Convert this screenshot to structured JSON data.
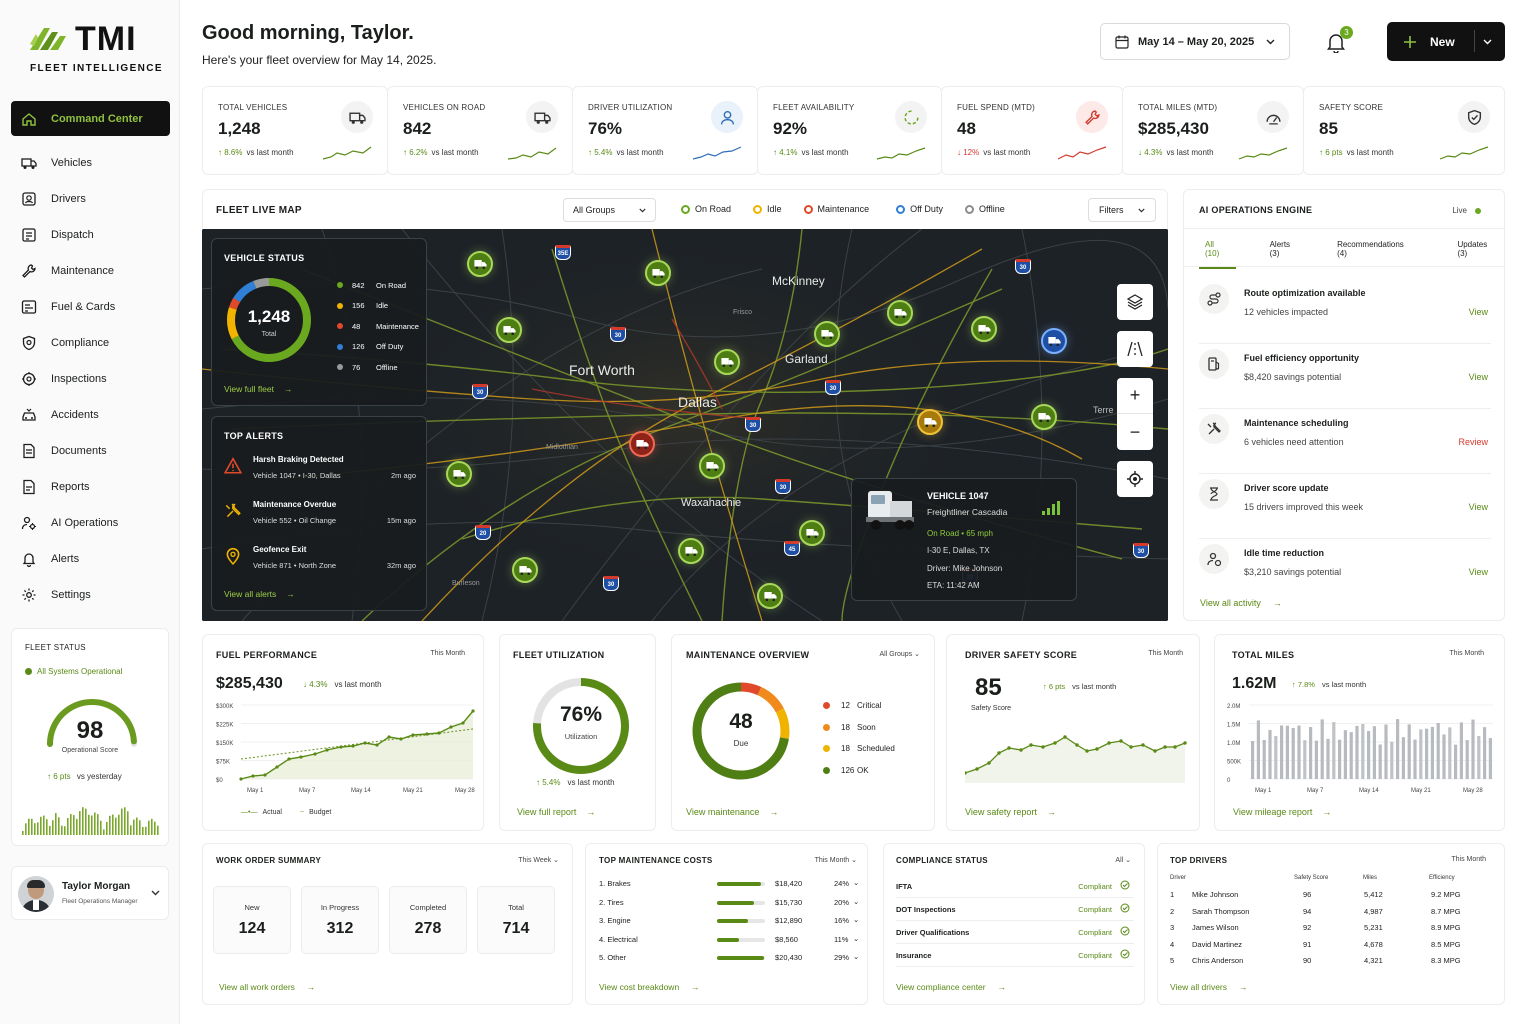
{
  "brand": {
    "name": "TMI",
    "tagline": "FLEET INTELLIGENCE"
  },
  "nav": [
    {
      "label": "Command Center",
      "icon": "home-icon"
    },
    {
      "label": "Vehicles",
      "icon": "truck-icon"
    },
    {
      "label": "Drivers",
      "icon": "driver-icon"
    },
    {
      "label": "Dispatch",
      "icon": "dispatch-icon"
    },
    {
      "label": "Maintenance",
      "icon": "wrench-icon"
    },
    {
      "label": "Fuel & Cards",
      "icon": "card-icon"
    },
    {
      "label": "Compliance",
      "icon": "shield-icon"
    },
    {
      "label": "Inspections",
      "icon": "inspect-icon"
    },
    {
      "label": "Accidents",
      "icon": "accident-icon"
    },
    {
      "label": "Documents",
      "icon": "document-icon"
    },
    {
      "label": "Reports",
      "icon": "report-icon"
    },
    {
      "label": "AI Operations",
      "icon": "ai-icon"
    },
    {
      "label": "Alerts",
      "icon": "bell-icon"
    },
    {
      "label": "Settings",
      "icon": "gear-icon"
    }
  ],
  "fleet_status": {
    "title": "FLEET STATUS",
    "status": "All Systems Operational",
    "score": "98",
    "score_label": "Operational Score",
    "delta": "6 pts",
    "delta_vs": "vs yesterday",
    "score_fraction": 0.98
  },
  "user": {
    "name": "Taylor Morgan",
    "role": "Fleet Operations Manager"
  },
  "header": {
    "greeting": "Good morning, Taylor.",
    "subtitle": "Here's your fleet overview for May 14, 2025.",
    "date_range": "May 14 – May 20, 2025",
    "notifications": "3",
    "new_label": "New"
  },
  "kpis": [
    {
      "title": "TOTAL VEHICLES",
      "value": "1,248",
      "delta": "8.6%",
      "vs": "vs last month",
      "dir": "up",
      "icon": "truck-icon"
    },
    {
      "title": "VEHICLES ON ROAD",
      "value": "842",
      "delta": "6.2%",
      "vs": "vs last month",
      "dir": "up",
      "icon": "truck-road-icon"
    },
    {
      "title": "DRIVER UTILIZATION",
      "value": "76%",
      "delta": "5.4%",
      "vs": "vs last month",
      "dir": "up",
      "icon": "person-icon"
    },
    {
      "title": "FLEET AVAILABILITY",
      "value": "92%",
      "delta": "4.1%",
      "vs": "vs last month",
      "dir": "up",
      "icon": "availability-icon"
    },
    {
      "title": "FUEL SPEND (MTD)",
      "value": "48",
      "delta": "12%",
      "vs": "vs last month",
      "dir": "down",
      "icon": "wrench-icon"
    },
    {
      "title": "TOTAL MILES (MTD)",
      "value": "$285,430",
      "delta": "4.3%",
      "vs": "vs last month",
      "dir": "down",
      "icon": "gauge-icon"
    },
    {
      "title": "SAFETY SCORE",
      "value": "85",
      "delta": "6 pts",
      "vs": "vs last month",
      "dir": "up",
      "icon": "shield-check-icon"
    }
  ],
  "map": {
    "title": "FLEET LIVE MAP",
    "group": "All Groups",
    "filters": "Filters",
    "legend": [
      {
        "label": "On Road",
        "color": "#6aa91f"
      },
      {
        "label": "Idle",
        "color": "#f0b400"
      },
      {
        "label": "Maintenance",
        "color": "#e04a2a"
      },
      {
        "label": "Off Duty",
        "color": "#2f7fd6"
      },
      {
        "label": "Offline",
        "color": "#8c8c8c"
      }
    ],
    "cities": [
      "McKinney",
      "Fort Worth",
      "Garland",
      "Dallas",
      "Waxahachie",
      "Frisco",
      "Terre",
      "Midlothian",
      "Burleson"
    ],
    "vehicle_status": {
      "title": "VEHICLE STATUS",
      "total": "1,248",
      "total_label": "Total",
      "link": "View full fleet",
      "items": [
        {
          "count": "842",
          "label": "On Road",
          "color": "#6aa91f",
          "value": 842
        },
        {
          "count": "156",
          "label": "Idle",
          "color": "#f0b400",
          "value": 156
        },
        {
          "count": "48",
          "label": "Maintenance",
          "color": "#e04a2a",
          "value": 48
        },
        {
          "count": "126",
          "label": "Off Duty",
          "color": "#2f7fd6",
          "value": 126
        },
        {
          "count": "76",
          "label": "Offline",
          "color": "#9a9a9a",
          "value": 76
        }
      ]
    },
    "alerts": {
      "title": "TOP ALERTS",
      "link": "View all alerts",
      "items": [
        {
          "title": "Harsh Braking Detected",
          "sub": "Vehicle 1047 • I-30, Dallas",
          "time": "2m ago",
          "icon": "warning-icon",
          "color": "#e04a2a"
        },
        {
          "title": "Maintenance Overdue",
          "sub": "Vehicle 552 • Oil Change",
          "time": "15m ago",
          "icon": "tools-icon",
          "color": "#f0b400"
        },
        {
          "title": "Geofence Exit",
          "sub": "Vehicle 871 • North Zone",
          "time": "32m ago",
          "icon": "location-icon",
          "color": "#f0b400"
        }
      ]
    },
    "vehicle_popup": {
      "title": "VEHICLE 1047",
      "model": "Freightliner Cascadia",
      "status": "On Road",
      "speed": "65 mph",
      "location": "I-30 E, Dallas, TX",
      "driver": "Driver: Mike Johnson",
      "eta": "ETA: 11:42 AM"
    },
    "highways": [
      "35E",
      "30",
      "30",
      "30",
      "30",
      "30",
      "30",
      "20",
      "30",
      "30",
      "45",
      "20"
    ]
  },
  "ai": {
    "title": "AI OPERATIONS ENGINE",
    "live": "Live",
    "tabs": [
      "All (10)",
      "Alerts (3)",
      "Recommendations (4)",
      "Updates (3)"
    ],
    "items": [
      {
        "title": "Route optimization available",
        "sub": "12 vehicles impacted",
        "action": "View",
        "icon": "route-icon"
      },
      {
        "title": "Fuel efficiency opportunity",
        "sub": "$8,420 savings potential",
        "action": "View",
        "icon": "fuel-icon"
      },
      {
        "title": "Maintenance scheduling",
        "sub": "6 vehicles need attention",
        "action": "Review",
        "icon": "tools-icon"
      },
      {
        "title": "Driver score update",
        "sub": "15 drivers improved this week",
        "action": "View",
        "icon": "score-icon"
      },
      {
        "title": "Idle time reduction",
        "sub": "$3,210 savings potential",
        "action": "View",
        "icon": "idle-icon"
      }
    ],
    "link": "View all activity"
  },
  "fuel_perf": {
    "title": "FUEL PERFORMANCE",
    "period": "This Month",
    "value": "$285,430",
    "delta": "4.3%",
    "vs": "vs last month",
    "legend": [
      "Actual",
      "Budget"
    ],
    "yticks": [
      "$300K",
      "$225K",
      "$150K",
      "$75K",
      "$0"
    ],
    "xticks": [
      "May 1",
      "May 7",
      "May 14",
      "May 21",
      "May 28"
    ]
  },
  "utilization": {
    "title": "FLEET UTILIZATION",
    "value": "76%",
    "label": "Utilization",
    "fraction": 0.76,
    "delta": "5.4%",
    "vs": "vs last month",
    "link": "View full report"
  },
  "maintenance": {
    "title": "MAINTENANCE OVERVIEW",
    "group": "All Groups",
    "value": "48",
    "label": "Due",
    "link": "View maintenance",
    "items": [
      {
        "count": "12",
        "label": "Critical",
        "color": "#e04a2a",
        "value": 12
      },
      {
        "count": "18",
        "label": "Soon",
        "color": "#f08a1c",
        "value": 18
      },
      {
        "count": "18",
        "label": "Scheduled",
        "color": "#f0b400",
        "value": 18
      },
      {
        "count": "126",
        "label": "OK",
        "color": "#4f7f14",
        "value": 126
      }
    ]
  },
  "safety": {
    "title": "DRIVER SAFETY SCORE",
    "period": "This Month",
    "value": "85",
    "label": "Safety Score",
    "delta": "6 pts",
    "vs": "vs last month",
    "link": "View safety report"
  },
  "miles": {
    "title": "TOTAL MILES",
    "period": "This Month",
    "value": "1.62M",
    "delta": "7.8%",
    "vs": "vs last month",
    "link": "View mileage report",
    "yticks": [
      "2.0M",
      "1.5M",
      "1.0M",
      "500K",
      "0"
    ],
    "xticks": [
      "May 1",
      "May 7",
      "May 14",
      "May 21",
      "May 28"
    ]
  },
  "work_orders": {
    "title": "WORK ORDER SUMMARY",
    "period": "This Week",
    "link": "View all work orders",
    "items": [
      {
        "label": "New",
        "value": "124"
      },
      {
        "label": "In Progress",
        "value": "312"
      },
      {
        "label": "Completed",
        "value": "278"
      },
      {
        "label": "Total",
        "value": "714"
      }
    ]
  },
  "costs": {
    "title": "TOP MAINTENANCE COSTS",
    "period": "This Month",
    "link": "View cost breakdown",
    "items": [
      {
        "name": "1.  Brakes",
        "amount": "$18,420",
        "pct": "24%",
        "fraction": 0.92
      },
      {
        "name": "2.  Tires",
        "amount": "$15,730",
        "pct": "20%",
        "fraction": 0.78
      },
      {
        "name": "3.  Engine",
        "amount": "$12,890",
        "pct": "16%",
        "fraction": 0.64
      },
      {
        "name": "4.  Electrical",
        "amount": "$8,560",
        "pct": "11%",
        "fraction": 0.45
      },
      {
        "name": "5.  Other",
        "amount": "$20,430",
        "pct": "29%",
        "fraction": 0.98
      }
    ]
  },
  "compliance": {
    "title": "COMPLIANCE STATUS",
    "filter": "All",
    "link": "View compliance center",
    "items": [
      {
        "name": "IFTA",
        "status": "Compliant"
      },
      {
        "name": "DOT Inspections",
        "status": "Compliant"
      },
      {
        "name": "Driver Qualifications",
        "status": "Compliant"
      },
      {
        "name": "Insurance",
        "status": "Compliant"
      }
    ]
  },
  "top_drivers": {
    "title": "TOP DRIVERS",
    "period": "This Month",
    "link": "View all drivers",
    "columns": [
      "Driver",
      "Safety Score",
      "Miles",
      "Efficiency"
    ],
    "rows": [
      [
        "1",
        "Mike Johnson",
        "96",
        "5,412",
        "9.2 MPG"
      ],
      [
        "2",
        "Sarah Thompson",
        "94",
        "4,987",
        "8.7 MPG"
      ],
      [
        "3",
        "James Wilson",
        "92",
        "5,231",
        "8.9 MPG"
      ],
      [
        "4",
        "David Martinez",
        "91",
        "4,678",
        "8.5 MPG"
      ],
      [
        "5",
        "Chris Anderson",
        "90",
        "4,321",
        "8.3 MPG"
      ]
    ]
  }
}
